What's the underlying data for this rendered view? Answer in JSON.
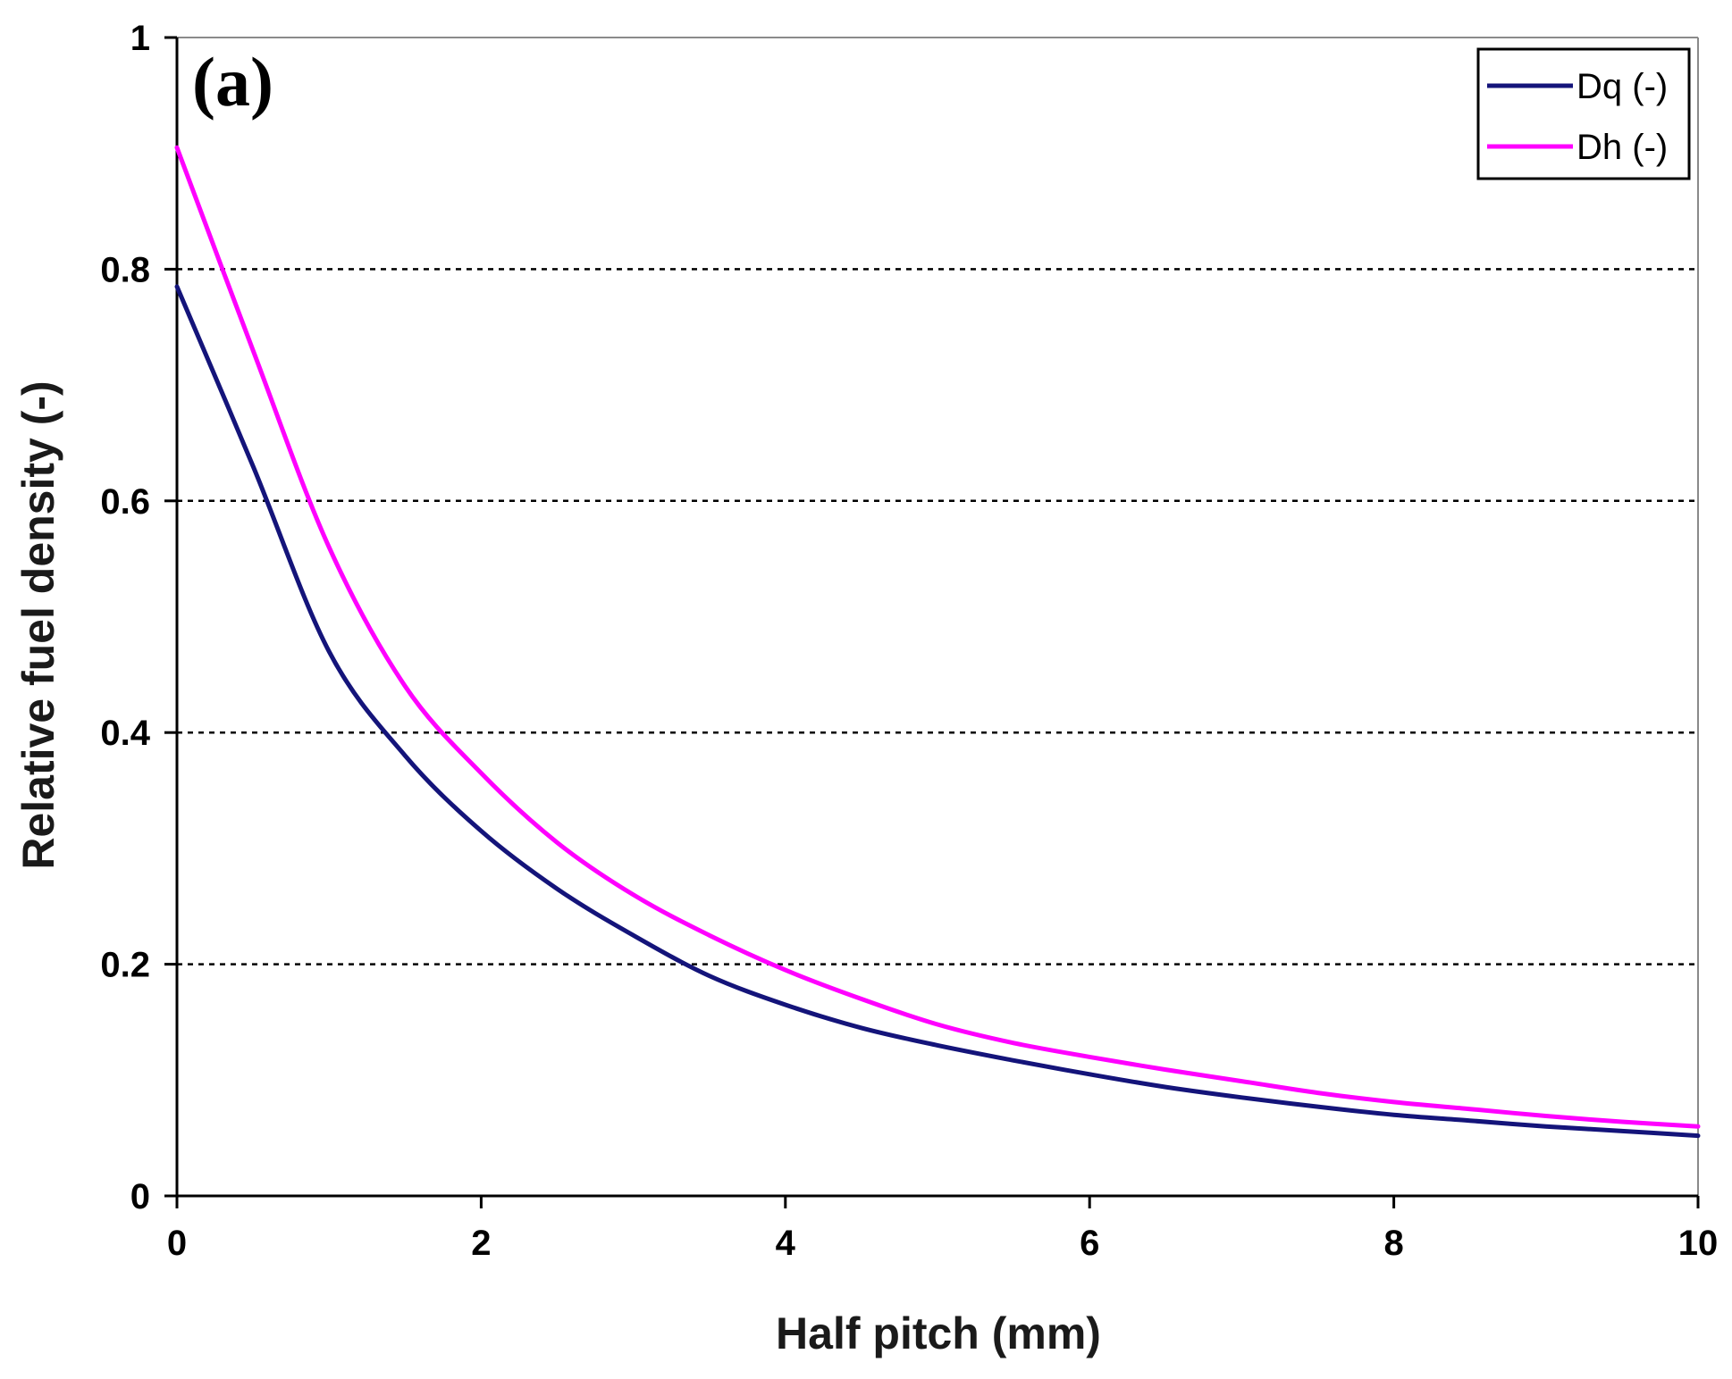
{
  "chart_data": {
    "type": "line",
    "panel_label": "(a)",
    "xlabel": "Half pitch (mm)",
    "ylabel": "Relative fuel density (-)",
    "xlim": [
      0,
      10
    ],
    "ylim": [
      0,
      1
    ],
    "xticks": [
      0,
      2,
      4,
      6,
      8,
      10
    ],
    "yticks": [
      0,
      0.2,
      0.4,
      0.6,
      0.8,
      1
    ],
    "xtick_labels": [
      "0",
      "2",
      "4",
      "6",
      "8",
      "10"
    ],
    "ytick_labels": [
      "0",
      "0.2",
      "0.4",
      "0.6",
      "0.8",
      "1"
    ],
    "grid": "horizontal dashed at 0.2, 0.4, 0.6, 0.8",
    "legend_position": "top-right",
    "series": [
      {
        "name": "Dq (-)",
        "color": "#14147a",
        "x": [
          0,
          0.5,
          1.0,
          1.5,
          2.0,
          2.5,
          3.0,
          3.5,
          4.0,
          4.5,
          5.0,
          5.5,
          6.0,
          6.5,
          7.0,
          7.5,
          8.0,
          8.5,
          9.0,
          9.5,
          10.0
        ],
        "y": [
          0.785,
          0.63,
          0.47,
          0.38,
          0.315,
          0.265,
          0.225,
          0.19,
          0.165,
          0.145,
          0.13,
          0.117,
          0.105,
          0.094,
          0.085,
          0.077,
          0.07,
          0.065,
          0.06,
          0.056,
          0.052
        ]
      },
      {
        "name": "Dh (-)",
        "color": "#ff00ff",
        "x": [
          0,
          0.5,
          1.0,
          1.5,
          2.0,
          2.5,
          3.0,
          3.5,
          4.0,
          4.5,
          5.0,
          5.5,
          6.0,
          6.5,
          7.0,
          7.5,
          8.0,
          8.5,
          9.0,
          9.5,
          10.0
        ],
        "y": [
          0.905,
          0.73,
          0.56,
          0.44,
          0.365,
          0.305,
          0.26,
          0.225,
          0.195,
          0.17,
          0.148,
          0.132,
          0.12,
          0.109,
          0.099,
          0.089,
          0.081,
          0.075,
          0.069,
          0.064,
          0.06
        ]
      }
    ]
  }
}
